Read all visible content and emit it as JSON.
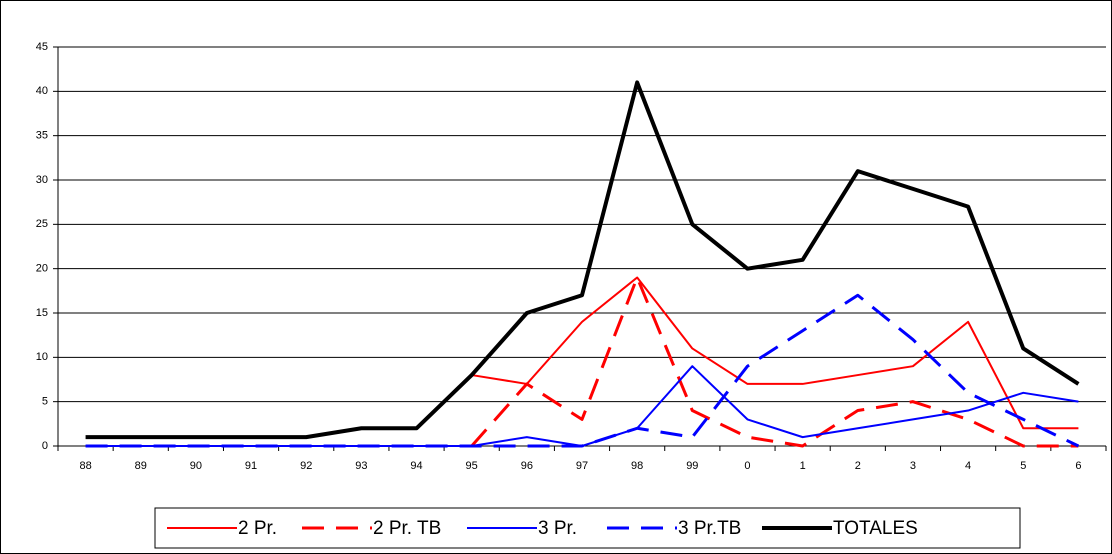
{
  "chart_data": {
    "type": "line",
    "categories": [
      "88",
      "89",
      "90",
      "91",
      "92",
      "93",
      "94",
      "95",
      "96",
      "97",
      "98",
      "99",
      "0",
      "1",
      "2",
      "3",
      "4",
      "5",
      "6"
    ],
    "series": [
      {
        "name": "2 Pr.",
        "color": "#ff0000",
        "dash": false,
        "width": 2,
        "values": [
          null,
          null,
          null,
          null,
          null,
          null,
          null,
          8,
          7,
          14,
          19,
          11,
          7,
          7,
          8,
          9,
          14,
          2,
          2
        ]
      },
      {
        "name": "2 Pr. TB",
        "color": "#ff0000",
        "dash": true,
        "width": 3,
        "values": [
          null,
          null,
          null,
          null,
          null,
          null,
          null,
          0,
          7,
          3,
          19,
          4,
          1,
          0,
          4,
          5,
          3,
          0,
          0
        ]
      },
      {
        "name": "3 Pr.",
        "color": "#0000ff",
        "dash": false,
        "width": 2,
        "values": [
          0,
          0,
          0,
          0,
          0,
          0,
          0,
          0,
          1,
          0,
          2,
          9,
          3,
          1,
          2,
          3,
          4,
          6,
          5
        ]
      },
      {
        "name": "3 Pr.TB",
        "color": "#0000ff",
        "dash": true,
        "width": 3,
        "values": [
          0,
          0,
          0,
          0,
          0,
          0,
          0,
          0,
          0,
          0,
          2,
          1,
          9,
          13,
          17,
          12,
          6,
          3,
          0
        ]
      },
      {
        "name": "TOTALES",
        "color": "#000000",
        "dash": false,
        "width": 4,
        "values": [
          1,
          1,
          1,
          1,
          1,
          2,
          2,
          8,
          15,
          17,
          41,
          25,
          20,
          21,
          31,
          29,
          27,
          11,
          7
        ]
      }
    ],
    "ylim": [
      0,
      45
    ],
    "yticks": [
      0,
      5,
      10,
      15,
      20,
      25,
      30,
      35,
      40,
      45
    ],
    "grid": true,
    "legend": "bottom"
  }
}
